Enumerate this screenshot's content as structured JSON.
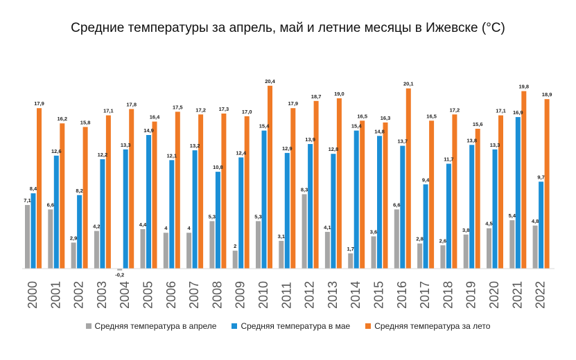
{
  "chart_data": {
    "type": "bar",
    "title": "Средние температуры за апрель, май и летние месяцы в Ижевске (°С)",
    "categories": [
      "2000",
      "2001",
      "2002",
      "2003",
      "2004",
      "2005",
      "2006",
      "2007",
      "2008",
      "2009",
      "2010",
      "2011",
      "2012",
      "2013",
      "2014",
      "2015",
      "2016",
      "2017",
      "2018",
      "2019",
      "2020",
      "2021",
      "2022"
    ],
    "series": [
      {
        "name": "Средняя температура в апреле",
        "color": "#a6a6a6",
        "values": [
          7.1,
          6.6,
          2.9,
          4.2,
          -0.2,
          4.4,
          4,
          4,
          5.3,
          2,
          5.3,
          3.1,
          8.3,
          4.1,
          1.7,
          3.6,
          6.6,
          2.8,
          2.6,
          3.8,
          4.5,
          5.4,
          4.8
        ],
        "labels": [
          "7,1",
          "6,6",
          "2,9",
          "4,2",
          "-0,2",
          "4,4",
          "4",
          "4",
          "5,3",
          "2",
          "5,3",
          "3,1",
          "8,3",
          "4,1",
          "1,7",
          "3,6",
          "6,6",
          "2,8",
          "2,6",
          "3,8",
          "4,5",
          "5,4",
          "4,8"
        ]
      },
      {
        "name": "Средняя температура в мае",
        "color": "#1b8fd6",
        "values": [
          8.4,
          12.6,
          8.2,
          12.2,
          13.3,
          14.9,
          12.1,
          13.2,
          10.8,
          12.4,
          15.4,
          12.9,
          13.9,
          12.8,
          15.4,
          14.8,
          13.7,
          9.4,
          11.7,
          13.8,
          13.3,
          16.9,
          9.7
        ],
        "labels": [
          "8,4",
          "12,6",
          "8,2",
          "12,2",
          "13,3",
          "14,9",
          "12,1",
          "13,2",
          "10,8",
          "12,4",
          "15,4",
          "12,9",
          "13,9",
          "12,8",
          "15,4",
          "14,8",
          "13,7",
          "9,4",
          "11,7",
          "13,8",
          "13,3",
          "16,9",
          "9,7"
        ]
      },
      {
        "name": "Средняя температура за лето",
        "color": "#f07a26",
        "values": [
          17.9,
          16.2,
          15.8,
          17.1,
          17.8,
          16.4,
          17.5,
          17.2,
          17.3,
          17.0,
          20.4,
          17.9,
          18.7,
          19.0,
          16.5,
          16.3,
          20.1,
          16.5,
          17.2,
          15.6,
          17.1,
          19.8,
          18.9
        ],
        "labels": [
          "17,9",
          "16,2",
          "15,8",
          "17,1",
          "17,8",
          "16,4",
          "17,5",
          "17,2",
          "17,3",
          "17,0",
          "20,4",
          "17,9",
          "18,7",
          "19,0",
          "16,5",
          "16,3",
          "20,1",
          "16,5",
          "17,2",
          "15,6",
          "17,1",
          "19,8",
          "18,9"
        ]
      }
    ],
    "ylim": [
      -0.2,
      20.4
    ],
    "grid": false,
    "legend_position": "bottom"
  }
}
